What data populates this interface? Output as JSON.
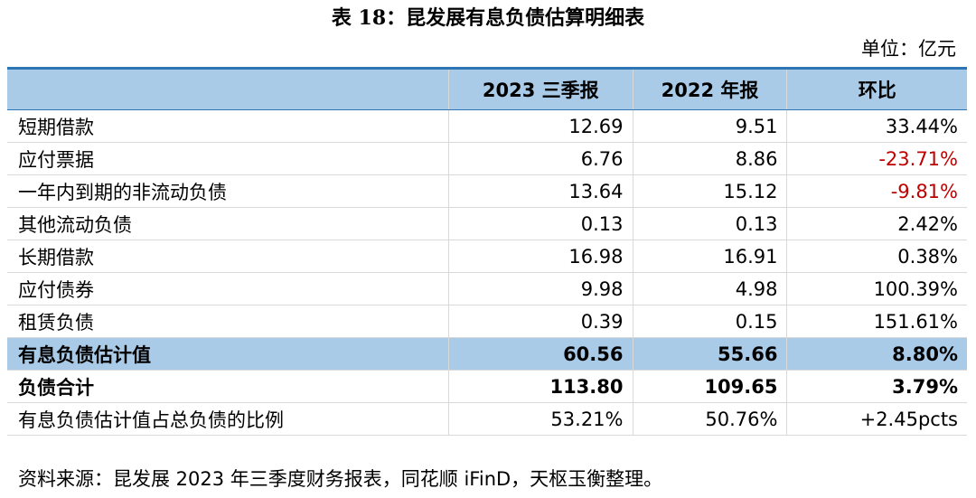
{
  "header": {
    "title": "表 18：昆发展有息负债估算明细表",
    "unit": "单位：亿元"
  },
  "table": {
    "columns": [
      "",
      "2023 三季报",
      "2022 年报",
      "环比"
    ],
    "rows": [
      [
        "短期借款",
        "12.69",
        "9.51",
        "33.44%"
      ],
      [
        "应付票据",
        "6.76",
        "8.86",
        "-23.71%"
      ],
      [
        "一年内到期的非流动负债",
        "13.64",
        "15.12",
        "-9.81%"
      ],
      [
        "其他流动负债",
        "0.13",
        "0.13",
        "2.42%"
      ],
      [
        "长期借款",
        "16.98",
        "16.91",
        "0.38%"
      ],
      [
        "应付债券",
        "9.98",
        "4.98",
        "100.39%"
      ],
      [
        "租赁负债",
        "0.39",
        "0.15",
        "151.61%"
      ],
      [
        "有息负债估计值",
        "60.56",
        "55.66",
        "8.80%"
      ],
      [
        "负债合计",
        "113.80",
        "109.65",
        "3.79%"
      ],
      [
        "有息负债估计值占总负债的比例",
        "53.21%",
        "50.76%",
        "+2.45pcts"
      ]
    ]
  },
  "footer": {
    "source": "资料来源：昆发展 2023 年三季度财务报表，同花顺 iFinD，天枢玉衡整理。"
  }
}
